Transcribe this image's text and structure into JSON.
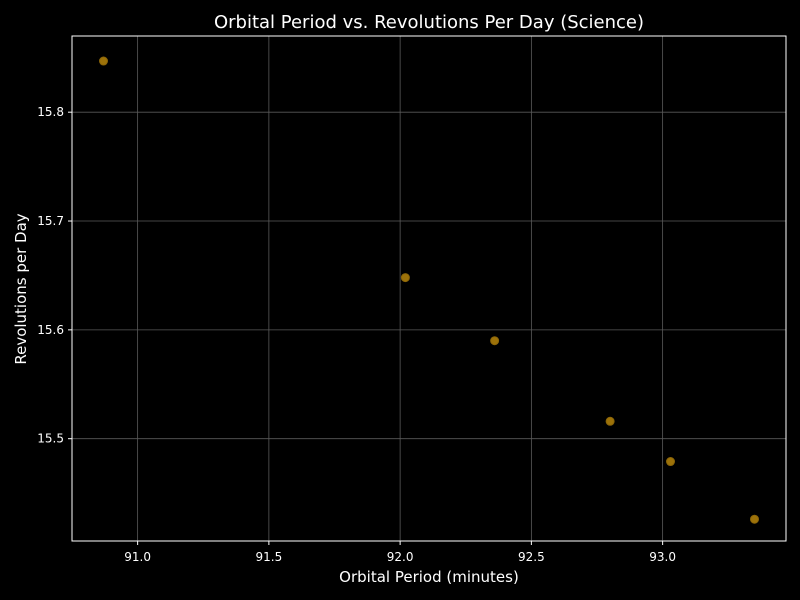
{
  "chart_data": {
    "type": "scatter",
    "title": "Orbital Period vs. Revolutions Per Day (Science)",
    "xlabel": "Orbital Period (minutes)",
    "ylabel": "Revolutions per Day",
    "xlim": [
      90.75,
      93.47
    ],
    "ylim": [
      15.406,
      15.87
    ],
    "xticks": [
      91.0,
      91.5,
      92.0,
      92.5,
      93.0
    ],
    "xtick_labels": [
      "91.0",
      "91.5",
      "92.0",
      "92.5",
      "93.0"
    ],
    "yticks": [
      15.5,
      15.6,
      15.7,
      15.8
    ],
    "ytick_labels": [
      "15.5",
      "15.6",
      "15.7",
      "15.8"
    ],
    "grid": true,
    "points": [
      {
        "x": 90.87,
        "y": 15.847
      },
      {
        "x": 92.02,
        "y": 15.648
      },
      {
        "x": 92.36,
        "y": 15.59
      },
      {
        "x": 92.8,
        "y": 15.516
      },
      {
        "x": 93.03,
        "y": 15.479
      },
      {
        "x": 93.35,
        "y": 15.426
      }
    ]
  },
  "colors": {
    "background": "#000000",
    "axes": "#ffffff",
    "grid": "#5a5a5a",
    "marker_fill": "#b8860b",
    "marker_edge": "#8b6508"
  }
}
